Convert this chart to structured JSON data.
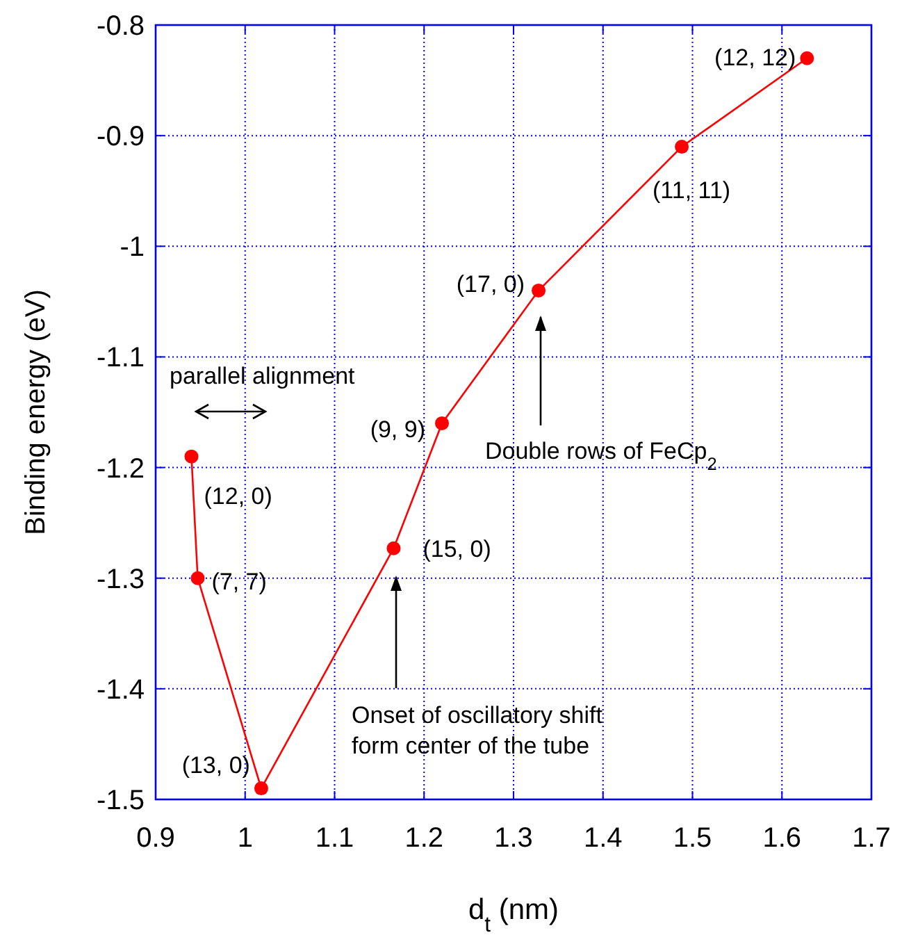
{
  "chart_data": {
    "type": "line",
    "xlabel": "d$_{t}$ (nm)",
    "ylabel": "Binding energy (eV)",
    "x": [
      0.94,
      0.947,
      1.018,
      1.166,
      1.22,
      1.328,
      1.488,
      1.628
    ],
    "series": [
      {
        "color": "#ff0000",
        "values": [
          -1.19,
          -1.3,
          -1.49,
          -1.273,
          -1.16,
          -1.04,
          -0.91,
          -0.83
        ]
      }
    ],
    "xlim": [
      0.9,
      1.7
    ],
    "xticks": [
      0.9,
      1,
      1.1,
      1.2,
      1.3,
      1.4,
      1.5,
      1.6,
      1.7
    ],
    "ylim": [
      -1.5,
      -0.8
    ],
    "yticks": [
      -1.5,
      -1.4,
      -1.3,
      -1.2,
      -1.1,
      -1,
      -0.9,
      -0.8
    ],
    "grid": true,
    "marker": "circle",
    "line_style": "solid",
    "annotations": [
      {
        "text": "(12, 0)",
        "x": 0.94,
        "y": -1.19
      },
      {
        "text": "(7, 7)",
        "x": 0.947,
        "y": -1.3
      },
      {
        "text": "(13, 0)",
        "x": 1.018,
        "y": -1.49
      },
      {
        "text": "(15, 0)",
        "x": 1.166,
        "y": -1.273
      },
      {
        "text": "(9, 9)",
        "x": 1.22,
        "y": -1.16
      },
      {
        "text": "(17, 0)",
        "x": 1.328,
        "y": -1.04
      },
      {
        "text": "(11, 11)",
        "x": 1.488,
        "y": -0.91
      },
      {
        "text": "(12, 12)",
        "x": 1.628,
        "y": -0.83
      },
      "parallel alignment",
      "Double rows of FeCp$_{2}$",
      "Onset of oscillatory shift\nform center of the tube"
    ]
  }
}
